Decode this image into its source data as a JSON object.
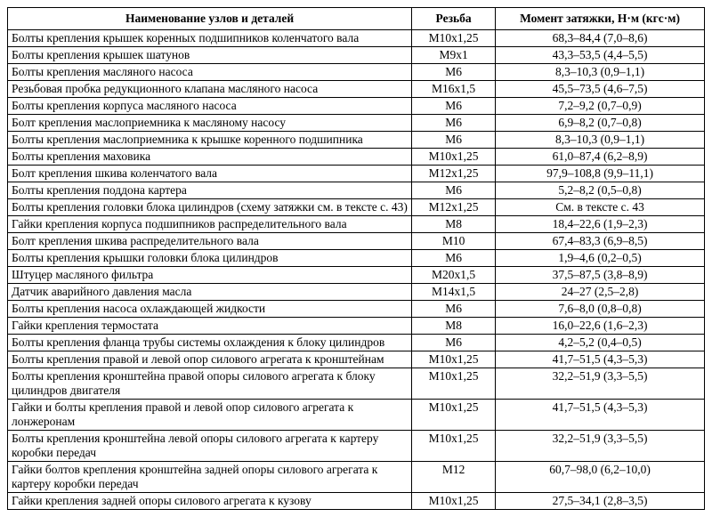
{
  "table": {
    "headers": {
      "name": "Наименование узлов и деталей",
      "thread": "Резьба",
      "torque": "Момент затяжки, Н·м (кгс·м)"
    },
    "rows": [
      {
        "name": "Болты крепления крышек коренных подшипников коленчатого вала",
        "thread": "М10х1,25",
        "torque": "68,3–84,4 (7,0–8,6)"
      },
      {
        "name": "Болты крепления крышек шатунов",
        "thread": "М9х1",
        "torque": "43,3–53,5 (4,4–5,5)"
      },
      {
        "name": "Болты крепления масляного насоса",
        "thread": "М6",
        "torque": "8,3–10,3 (0,9–1,1)"
      },
      {
        "name": "Резьбовая пробка редукционного клапана масляного насоса",
        "thread": "М16х1,5",
        "torque": "45,5–73,5 (4,6–7,5)"
      },
      {
        "name": "Болты крепления корпуса масляного насоса",
        "thread": "М6",
        "torque": "7,2–9,2 (0,7–0,9)"
      },
      {
        "name": "Болт крепления маслоприемника к масляному насосу",
        "thread": "М6",
        "torque": "6,9–8,2 (0,7–0,8)"
      },
      {
        "name": "Болты крепления маслоприемника к крышке коренного подшипника",
        "thread": "М6",
        "torque": "8,3–10,3 (0,9–1,1)"
      },
      {
        "name": "Болты крепления маховика",
        "thread": "М10х1,25",
        "torque": "61,0–87,4 (6,2–8,9)"
      },
      {
        "name": "Болт крепления шкива коленчатого вала",
        "thread": "М12х1,25",
        "torque": "97,9–108,8 (9,9–11,1)"
      },
      {
        "name": "Болты крепления поддона картера",
        "thread": "М6",
        "torque": "5,2–8,2 (0,5–0,8)"
      },
      {
        "name": "Болты крепления головки блока цилиндров (схему затяжки см. в тексте с. 43)",
        "thread": "М12х1,25",
        "torque": "См. в тексте с. 43"
      },
      {
        "name": "Гайки крепления корпуса подшипников распределительного вала",
        "thread": "М8",
        "torque": "18,4–22,6 (1,9–2,3)"
      },
      {
        "name": "Болт крепления шкива распределительного вала",
        "thread": "М10",
        "torque": "67,4–83,3 (6,9–8,5)"
      },
      {
        "name": "Болты крепления крышки головки блока цилиндров",
        "thread": "М6",
        "torque": "1,9–4,6 (0,2–0,5)"
      },
      {
        "name": "Штуцер масляного фильтра",
        "thread": "М20х1,5",
        "torque": "37,5–87,5 (3,8–8,9)"
      },
      {
        "name": "Датчик аварийного давления масла",
        "thread": "М14х1,5",
        "torque": "24–27 (2,5–2,8)"
      },
      {
        "name": "Болты крепления насоса охлаждающей жидкости",
        "thread": "М6",
        "torque": "7,6–8,0 (0,8–0,8)"
      },
      {
        "name": "Гайки крепления термостата",
        "thread": "М8",
        "torque": "16,0–22,6 (1,6–2,3)"
      },
      {
        "name": "Болты крепления фланца трубы системы охлаждения к блоку цилиндров",
        "thread": "М6",
        "torque": "4,2–5,2 (0,4–0,5)"
      },
      {
        "name": "Болты крепления правой и левой опор силового агрегата к кронштейнам",
        "thread": "М10х1,25",
        "torque": "41,7–51,5 (4,3–5,3)"
      },
      {
        "name": "Болты крепления кронштейна правой опоры силового агрегата к блоку цилиндров двигателя",
        "thread": "М10х1,25",
        "torque": "32,2–51,9 (3,3–5,5)"
      },
      {
        "name": "Гайки и болты крепления правой и левой опор силового агрегата к лонжеронам",
        "thread": "М10х1,25",
        "torque": "41,7–51,5 (4,3–5,3)"
      },
      {
        "name": "Болты крепления кронштейна левой опоры силового агрегата к картеру коробки передач",
        "thread": "М10х1,25",
        "torque": "32,2–51,9 (3,3–5,5)"
      },
      {
        "name": "Гайки болтов крепления кронштейна задней опоры силового агрегата к картеру коробки передач",
        "thread": "М12",
        "torque": "60,7–98,0 (6,2–10,0)"
      },
      {
        "name": "Гайки крепления задней опоры силового агрегата к кузову",
        "thread": "М10х1,25",
        "torque": "27,5–34,1 (2,8–3,5)"
      }
    ]
  }
}
